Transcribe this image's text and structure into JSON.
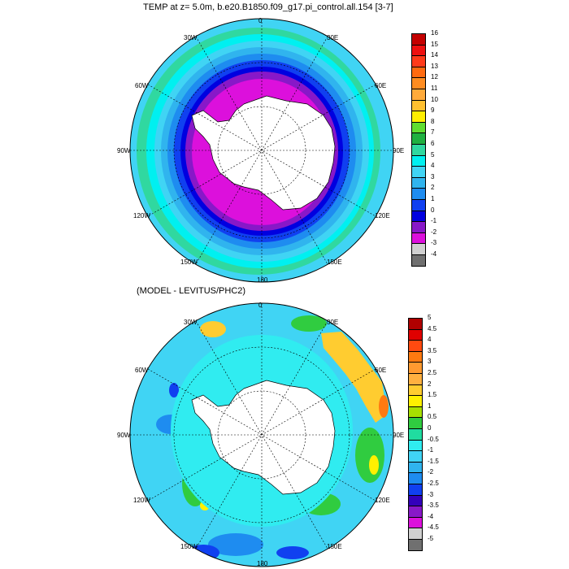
{
  "top_title": "TEMP at z=   5.0m, b.e20.B1850.f09_g17.pi_control.all.154 [3-7]",
  "bottom_title": "(MODEL - LEVITUS/PHC2)",
  "longitude_labels": {
    "n0": "0",
    "n30e": "30E",
    "n60e": "60E",
    "n90e": "90E",
    "n120e": "120E",
    "n150e": "150E",
    "n180": "180",
    "n150w": "150W",
    "n120w": "120W",
    "n90w": "90W",
    "n60w": "60W",
    "n30w": "30W"
  },
  "top_colorbar": {
    "labels": [
      "16",
      "15",
      "14",
      "13",
      "12",
      "11",
      "10",
      "9",
      "8",
      "7",
      "6",
      "5",
      "4",
      "3",
      "2",
      "1",
      "0",
      "-1",
      "-2",
      "-3",
      "-4"
    ],
    "colors": [
      "#c40000",
      "#ee1010",
      "#ff3a1a",
      "#ff6a10",
      "#ff8c20",
      "#ffaa3a",
      "#ffc030",
      "#ffee00",
      "#60dd30",
      "#20b040",
      "#30d8a0",
      "#00f0f0",
      "#40d4f4",
      "#30b4ee",
      "#1e8cf0",
      "#1040f0",
      "#0000e0",
      "#8818c8",
      "#dc10dc",
      "#d0d0d0"
    ],
    "bottom_color": "#707070"
  },
  "bottom_colorbar": {
    "labels": [
      "5",
      "4.5",
      "4",
      "3.5",
      "3",
      "2.5",
      "2",
      "1.5",
      "1",
      "0.5",
      "0",
      "-0.5",
      "-1",
      "-1.5",
      "-2",
      "-2.5",
      "-3",
      "-3.5",
      "-4",
      "-4.5",
      "-5"
    ],
    "colors": [
      "#b00000",
      "#e00000",
      "#ff4a10",
      "#ff7a10",
      "#ff9a30",
      "#ffb040",
      "#ffcc30",
      "#fff000",
      "#a8e000",
      "#30cc40",
      "#20dca0",
      "#30ecf0",
      "#40d4f4",
      "#30b4ee",
      "#1e8cf0",
      "#1040f0",
      "#3300bb",
      "#8818c8",
      "#dc10dc",
      "#d0d0d0"
    ],
    "bottom_color": "#707070"
  },
  "map_colors": {
    "land": "#ffffff",
    "top_rings": [
      "#40d4f4",
      "#30d8a0",
      "#00f0f0",
      "#40d4f4",
      "#30b4ee",
      "#1e8cf0",
      "#1040f0",
      "#0000e0",
      "#8818c8",
      "#dc10dc"
    ],
    "bottom_base": "#40d4f4",
    "bottom_ice": "#30ecf0"
  }
}
